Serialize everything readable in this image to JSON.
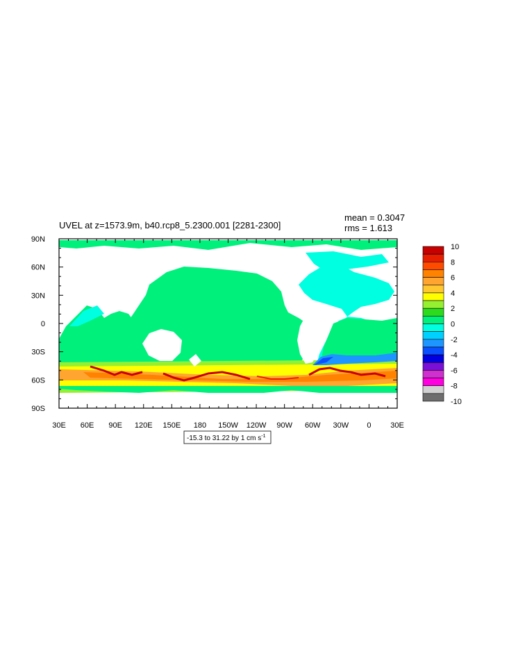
{
  "chart_data": {
    "type": "heatmap",
    "title": "UVEL at z=1573.9m, b40.rcp8_5.2300.001 [2281-2300]",
    "stats": {
      "mean": "mean = 0.3047",
      "rms": "rms = 1.613"
    },
    "subtitle_parts": {
      "main": "-15.3 to 31.22 by 1 cm s",
      "sup": "-1"
    },
    "x_tick_labels": [
      "30E",
      "60E",
      "90E",
      "120E",
      "150E",
      "180",
      "150W",
      "120W",
      "90W",
      "60W",
      "30W",
      "0",
      "30E"
    ],
    "y_tick_labels": [
      "90N",
      "60N",
      "30N",
      "0",
      "30S",
      "60S",
      "90S"
    ],
    "y_values": [
      90,
      60,
      30,
      0,
      -30,
      -60,
      -90
    ],
    "lon_range": [
      30,
      390
    ],
    "lat_range": [
      -90,
      90
    ],
    "colorbar": {
      "labels": [
        "10",
        "8",
        "6",
        "4",
        "2",
        "0",
        "-2",
        "-4",
        "-6",
        "-8",
        "-10"
      ],
      "colors": [
        "#c80000",
        "#e81e00",
        "#ff4a00",
        "#ff8200",
        "#ffa530",
        "#ffc830",
        "#ffff00",
        "#96f032",
        "#2cda1e",
        "#00f07c",
        "#00ffe0",
        "#00d0ff",
        "#1e96ff",
        "#0a50ff",
        "#0000e0",
        "#7a10d8",
        "#d030d0",
        "#ff00e0",
        "#d2d2d2",
        "#6e6e6e"
      ]
    },
    "field_description": "Zonal velocity (cm/s): near zero (0 to 2) over most oceans; strong eastward flow (2 to 10+) along Antarctic Circumpolar Current band 40S-65S; weak westward (-2 to -4) off southern South America; land masked white."
  }
}
